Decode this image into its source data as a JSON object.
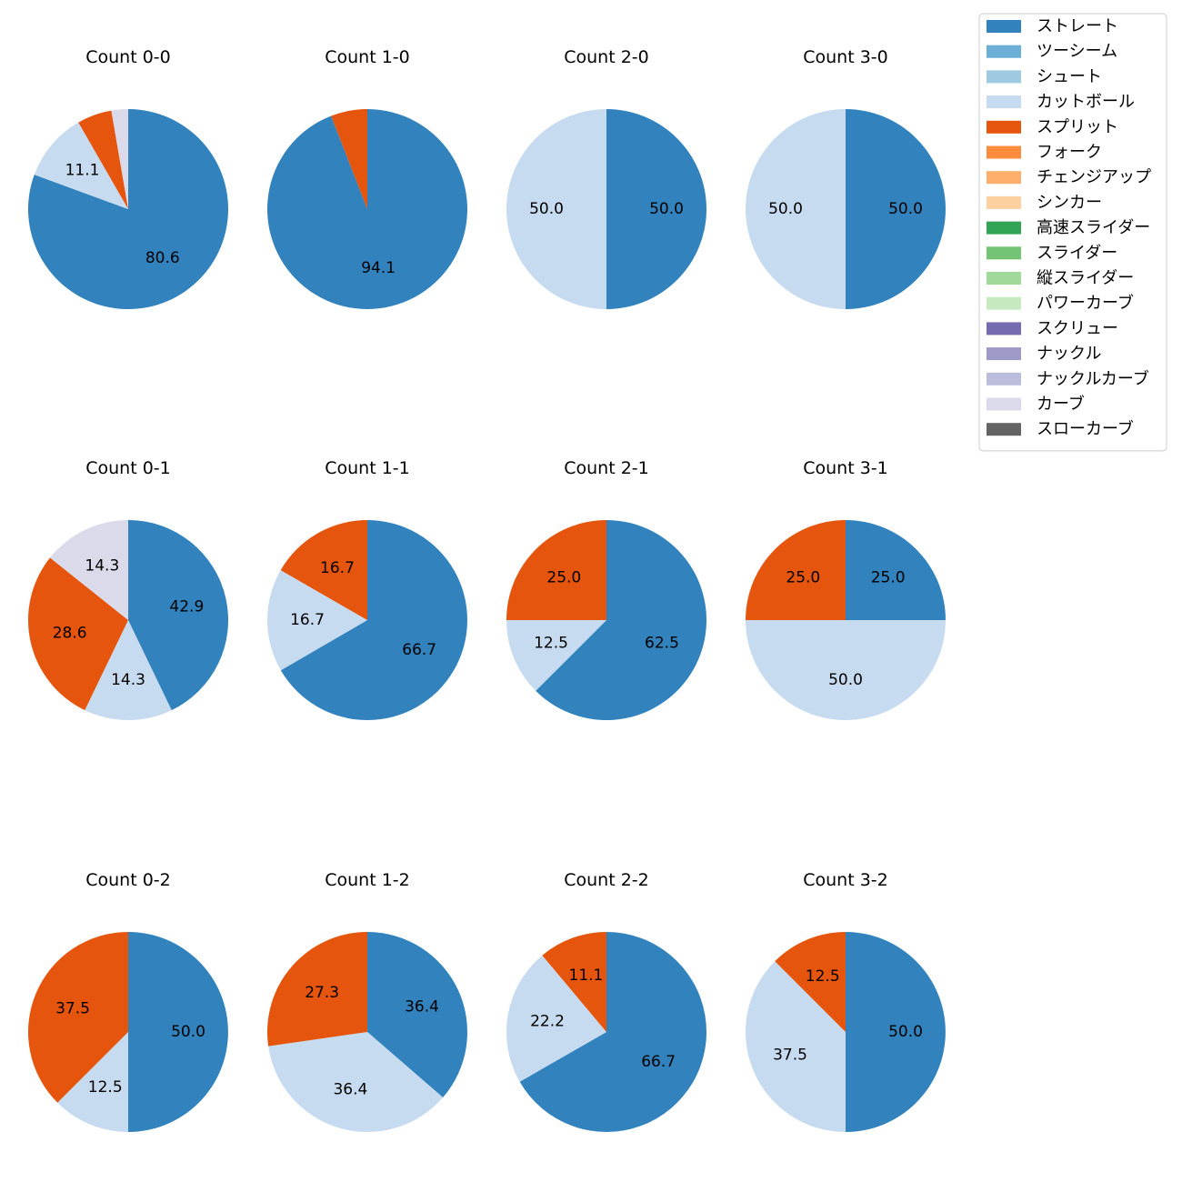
{
  "chart_data": {
    "type": "pie",
    "legend_position": "top-right",
    "legend": [
      {
        "name": "ストレート",
        "color": "#3182bd"
      },
      {
        "name": "ツーシーム",
        "color": "#6baed6"
      },
      {
        "name": "シュート",
        "color": "#9ecae1"
      },
      {
        "name": "カットボール",
        "color": "#c6dbef"
      },
      {
        "name": "スプリット",
        "color": "#e6550d"
      },
      {
        "name": "フォーク",
        "color": "#fd8d3c"
      },
      {
        "name": "チェンジアップ",
        "color": "#fdae6b"
      },
      {
        "name": "シンカー",
        "color": "#fdd0a2"
      },
      {
        "name": "高速スライダー",
        "color": "#31a354"
      },
      {
        "name": "スライダー",
        "color": "#74c476"
      },
      {
        "name": "縦スライダー",
        "color": "#a1d99b"
      },
      {
        "name": "パワーカーブ",
        "color": "#c7e9c0"
      },
      {
        "name": "スクリュー",
        "color": "#756bb1"
      },
      {
        "name": "ナックル",
        "color": "#9e9ac8"
      },
      {
        "name": "ナックルカーブ",
        "color": "#bcbddc"
      },
      {
        "name": "カーブ",
        "color": "#dadaeb"
      },
      {
        "name": "スローカーブ",
        "color": "#636363"
      }
    ],
    "charts": [
      {
        "title": "Count 0-0",
        "slices": [
          {
            "pitch": "ストレート",
            "value": 80.6,
            "label": "80.6"
          },
          {
            "pitch": "カットボール",
            "value": 11.1,
            "label": "11.1"
          },
          {
            "pitch": "スプリット",
            "value": 5.6,
            "label": ""
          },
          {
            "pitch": "カーブ",
            "value": 2.7,
            "label": ""
          }
        ]
      },
      {
        "title": "Count 1-0",
        "slices": [
          {
            "pitch": "ストレート",
            "value": 94.1,
            "label": "94.1"
          },
          {
            "pitch": "スプリット",
            "value": 5.9,
            "label": ""
          }
        ]
      },
      {
        "title": "Count 2-0",
        "slices": [
          {
            "pitch": "ストレート",
            "value": 50.0,
            "label": "50.0"
          },
          {
            "pitch": "カットボール",
            "value": 50.0,
            "label": "50.0"
          }
        ]
      },
      {
        "title": "Count 3-0",
        "slices": [
          {
            "pitch": "ストレート",
            "value": 50.0,
            "label": "50.0"
          },
          {
            "pitch": "カットボール",
            "value": 50.0,
            "label": "50.0"
          }
        ]
      },
      {
        "title": "Count 0-1",
        "slices": [
          {
            "pitch": "ストレート",
            "value": 42.9,
            "label": "42.9"
          },
          {
            "pitch": "カットボール",
            "value": 14.3,
            "label": "14.3"
          },
          {
            "pitch": "スプリット",
            "value": 28.6,
            "label": "28.6"
          },
          {
            "pitch": "カーブ",
            "value": 14.3,
            "label": "14.3"
          }
        ]
      },
      {
        "title": "Count 1-1",
        "slices": [
          {
            "pitch": "ストレート",
            "value": 66.7,
            "label": "66.7"
          },
          {
            "pitch": "カットボール",
            "value": 16.7,
            "label": "16.7"
          },
          {
            "pitch": "スプリット",
            "value": 16.7,
            "label": "16.7"
          }
        ]
      },
      {
        "title": "Count 2-1",
        "slices": [
          {
            "pitch": "ストレート",
            "value": 62.5,
            "label": "62.5"
          },
          {
            "pitch": "カットボール",
            "value": 12.5,
            "label": "12.5"
          },
          {
            "pitch": "スプリット",
            "value": 25.0,
            "label": "25.0"
          }
        ]
      },
      {
        "title": "Count 3-1",
        "slices": [
          {
            "pitch": "ストレート",
            "value": 25.0,
            "label": "25.0"
          },
          {
            "pitch": "カットボール",
            "value": 50.0,
            "label": "50.0"
          },
          {
            "pitch": "スプリット",
            "value": 25.0,
            "label": "25.0"
          }
        ]
      },
      {
        "title": "Count 0-2",
        "slices": [
          {
            "pitch": "ストレート",
            "value": 50.0,
            "label": "50.0"
          },
          {
            "pitch": "カットボール",
            "value": 12.5,
            "label": "12.5"
          },
          {
            "pitch": "スプリット",
            "value": 37.5,
            "label": "37.5"
          }
        ]
      },
      {
        "title": "Count 1-2",
        "slices": [
          {
            "pitch": "ストレート",
            "value": 36.4,
            "label": "36.4"
          },
          {
            "pitch": "カットボール",
            "value": 36.4,
            "label": "36.4"
          },
          {
            "pitch": "スプリット",
            "value": 27.3,
            "label": "27.3"
          }
        ]
      },
      {
        "title": "Count 2-2",
        "slices": [
          {
            "pitch": "ストレート",
            "value": 66.7,
            "label": "66.7"
          },
          {
            "pitch": "カットボール",
            "value": 22.2,
            "label": "22.2"
          },
          {
            "pitch": "スプリット",
            "value": 11.1,
            "label": "11.1"
          }
        ]
      },
      {
        "title": "Count 3-2",
        "slices": [
          {
            "pitch": "ストレート",
            "value": 50.0,
            "label": "50.0"
          },
          {
            "pitch": "カットボール",
            "value": 37.5,
            "label": "37.5"
          },
          {
            "pitch": "スプリット",
            "value": 12.5,
            "label": "12.5"
          }
        ]
      }
    ]
  }
}
